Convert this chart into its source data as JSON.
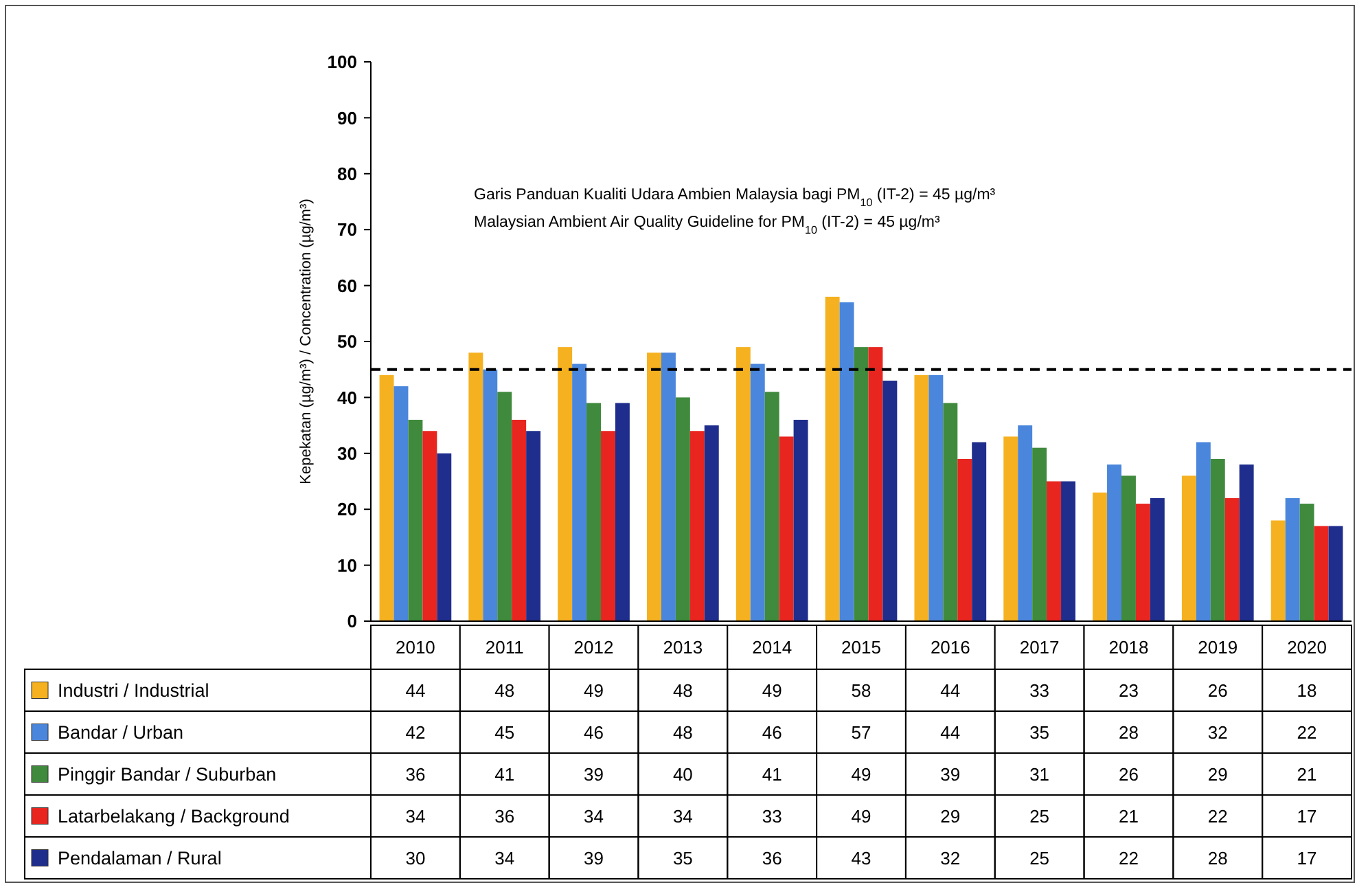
{
  "chart_data": {
    "type": "bar",
    "ylabel": "Kepekatan (µg/m³) / Concentration (µg/m³)",
    "categories": [
      "2010",
      "2011",
      "2012",
      "2013",
      "2014",
      "2015",
      "2016",
      "2017",
      "2018",
      "2019",
      "2020"
    ],
    "series": [
      {
        "name": "Industri / Industrial",
        "color": "#f5b120",
        "values": [
          44,
          48,
          49,
          48,
          49,
          58,
          44,
          33,
          23,
          26,
          18
        ]
      },
      {
        "name": "Bandar / Urban",
        "color": "#4a86dc",
        "values": [
          42,
          45,
          46,
          48,
          46,
          57,
          44,
          35,
          28,
          32,
          22
        ]
      },
      {
        "name": "Pinggir Bandar / Suburban",
        "color": "#3f8a3c",
        "values": [
          36,
          41,
          39,
          40,
          41,
          49,
          39,
          31,
          26,
          29,
          21
        ]
      },
      {
        "name": "Latarbelakang / Background",
        "color": "#e8251f",
        "values": [
          34,
          36,
          34,
          34,
          33,
          49,
          29,
          25,
          21,
          22,
          17
        ]
      },
      {
        "name": "Pendalaman / Rural",
        "color": "#1f2e8c",
        "values": [
          30,
          34,
          39,
          35,
          36,
          43,
          32,
          25,
          22,
          28,
          17
        ]
      }
    ],
    "ylim": [
      0,
      100
    ],
    "yticks": [
      0,
      10,
      20,
      30,
      40,
      50,
      60,
      70,
      80,
      90,
      100
    ],
    "ref_lines": [
      {
        "axis": "y",
        "value": 45,
        "line_style": "dashed",
        "color": "#000000"
      }
    ],
    "annotations": [
      "Garis Panduan Kualiti Udara Ambien Malaysia bagi PM$_{10}$ (IT-2) = 45 µg/m³",
      "Malaysian Ambient Air Quality Guideline for PM$_{10}$ (IT-2) = 45 µg/m³"
    ],
    "data_labels": true,
    "legend": "bottom",
    "grid": false
  }
}
